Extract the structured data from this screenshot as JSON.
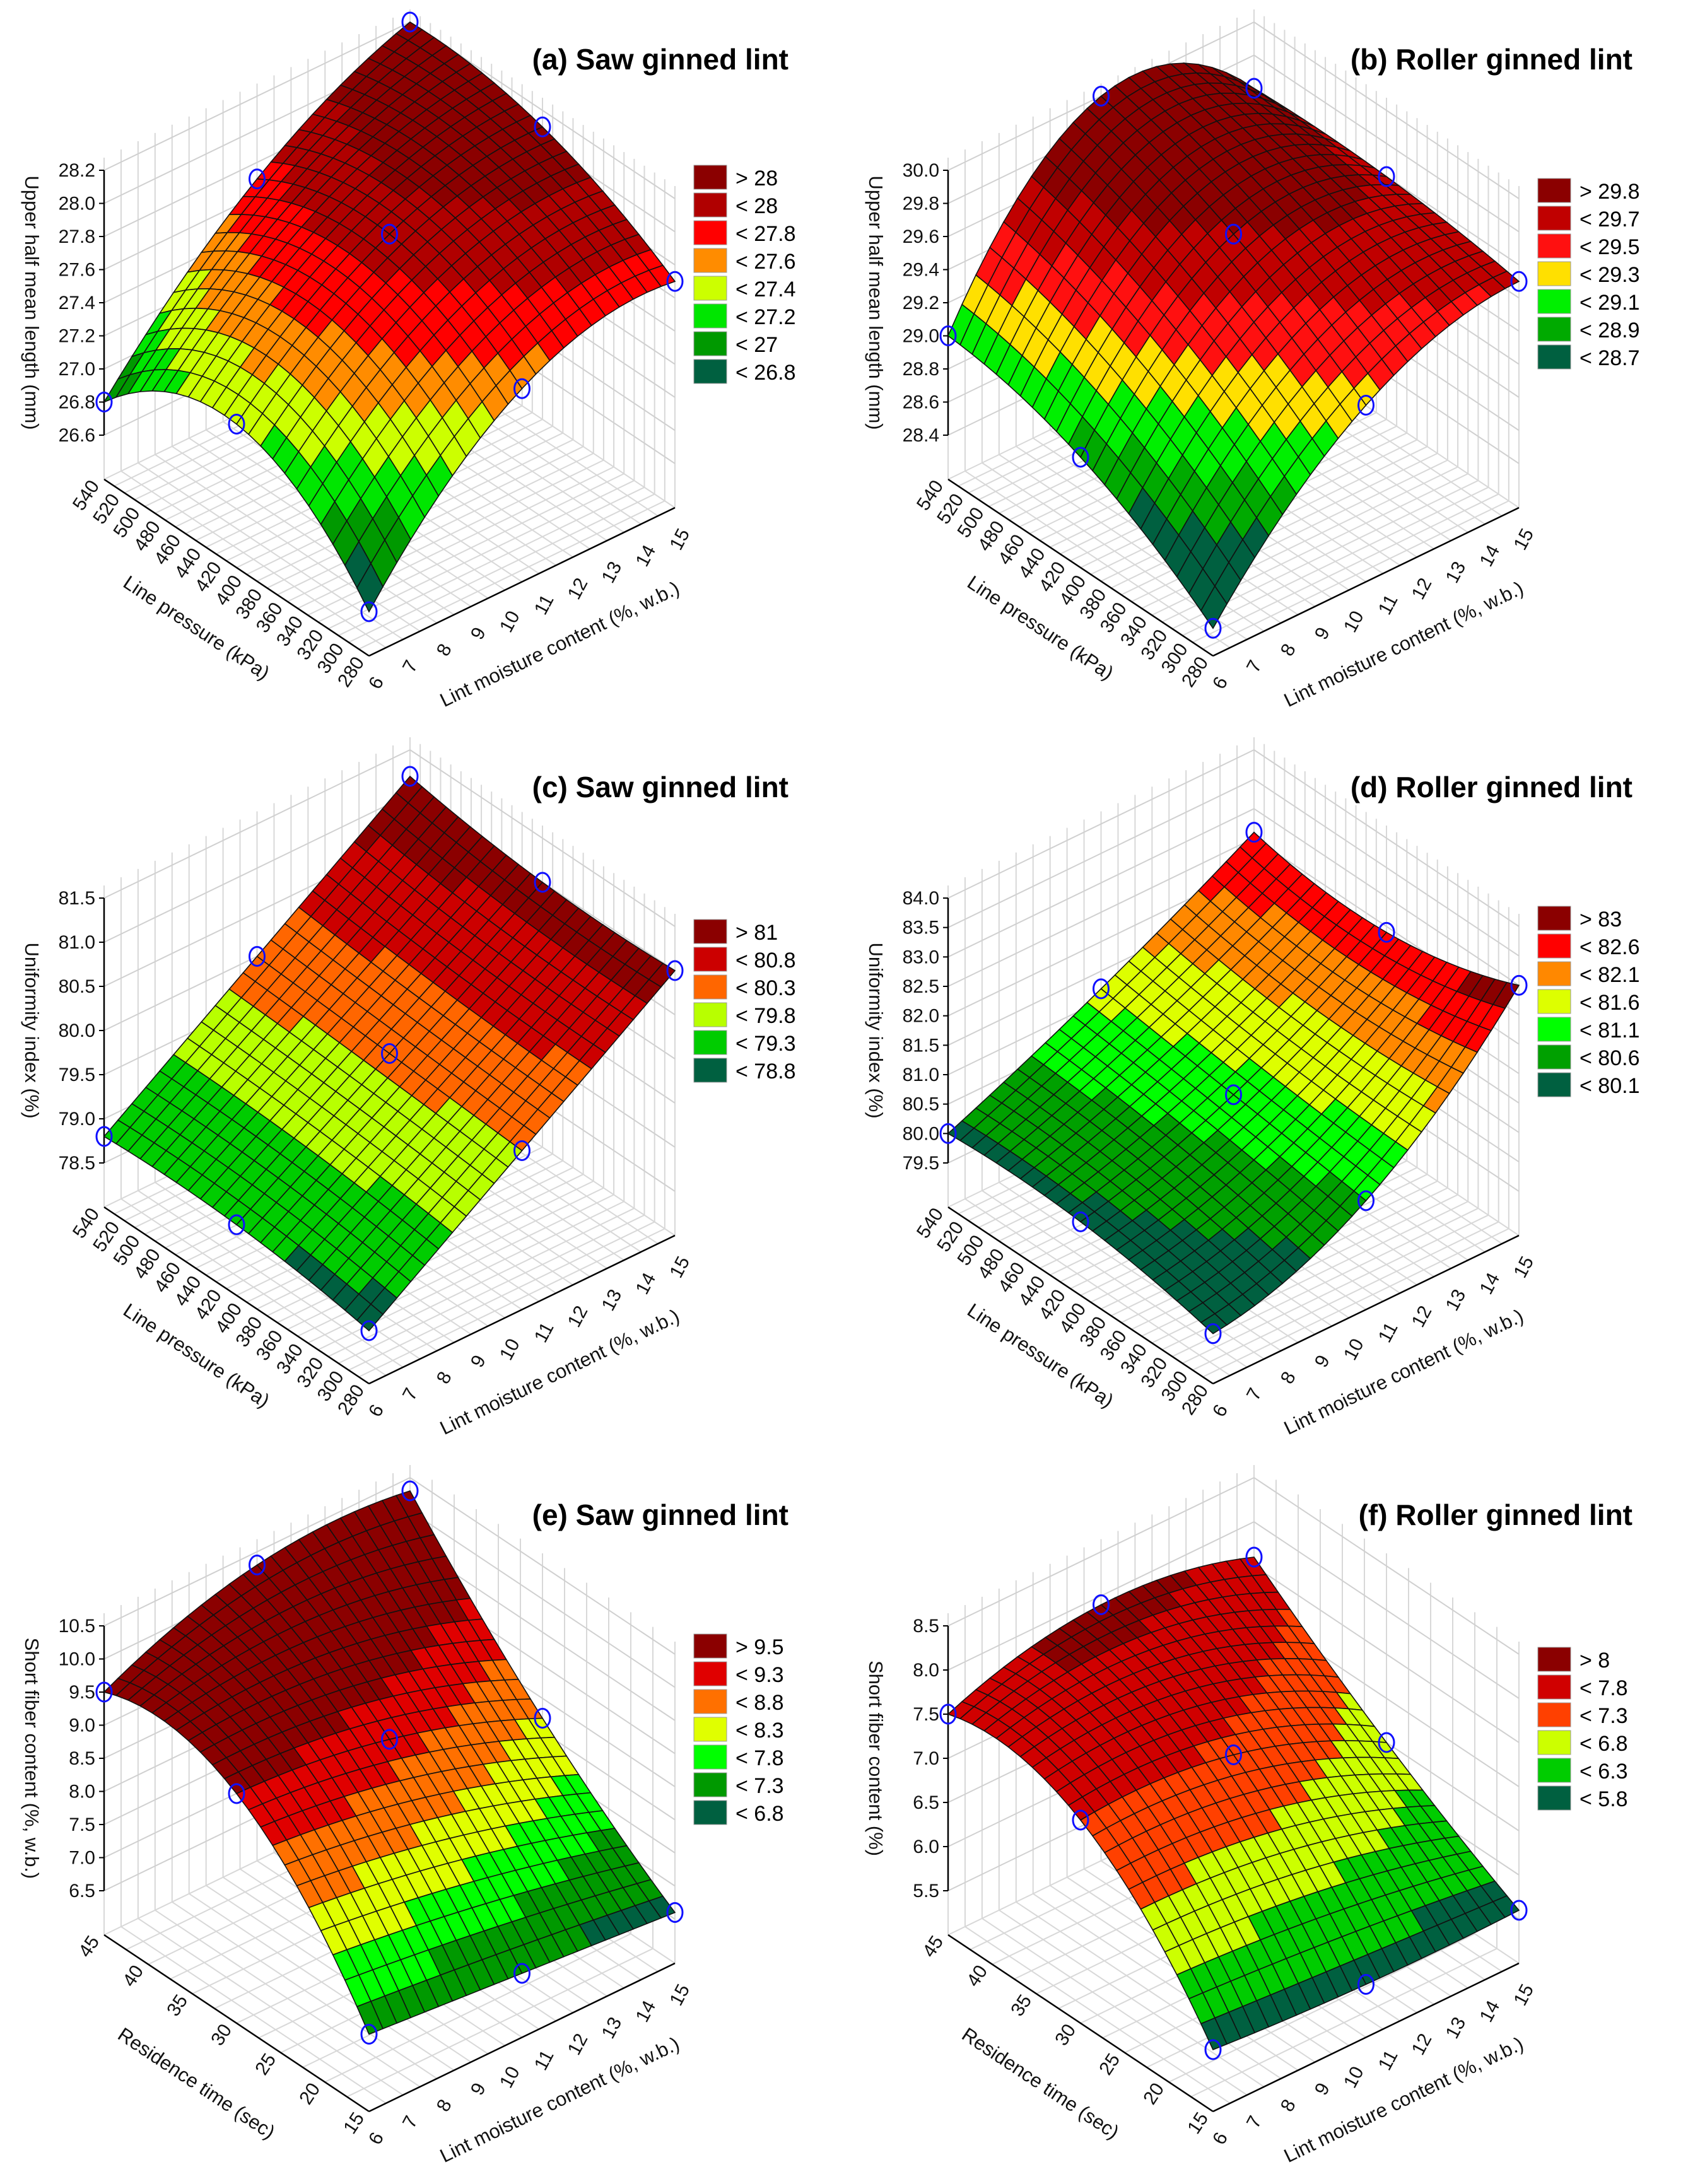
{
  "chart_data": [
    {
      "type": "surface3d",
      "title": "(a) Saw ginned lint",
      "xlabel": "Lint moisture content (%, w.b.)",
      "ylabel": "Line pressure (kPa)",
      "zlabel": "Upper half mean length (mm)",
      "x_range": [
        6,
        15
      ],
      "x_ticks": [
        6,
        7,
        8,
        9,
        10,
        11,
        12,
        13,
        14,
        15
      ],
      "y_range": [
        280,
        540
      ],
      "y_ticks": [
        280,
        300,
        320,
        340,
        360,
        380,
        400,
        420,
        440,
        460,
        480,
        500,
        520,
        540
      ],
      "z_range": [
        26.6,
        28.2
      ],
      "z_ticks": [
        "26.6",
        "26.8",
        "27.0",
        "27.2",
        "27.4",
        "27.6",
        "27.8",
        "28.0",
        "28.2"
      ],
      "surface_grid_x": [
        6,
        10.5,
        15
      ],
      "surface_grid_y": [
        280,
        410,
        540
      ],
      "surface_z": [
        [
          26.6,
          27.5,
          27.7
        ],
        [
          27.2,
          27.9,
          28.1
        ],
        [
          26.8,
          27.7,
          28.2
        ]
      ],
      "legend": [
        {
          "label": "> 28",
          "value": 28,
          "color": "#8B0000"
        },
        {
          "label": "< 28",
          "value": 28,
          "color": "#B00000"
        },
        {
          "label": "< 27.8",
          "value": 27.8,
          "color": "#FF0000"
        },
        {
          "label": "< 27.6",
          "value": 27.6,
          "color": "#FF8C00"
        },
        {
          "label": "< 27.4",
          "value": 27.4,
          "color": "#CCFF00"
        },
        {
          "label": "< 27.2",
          "value": 27.2,
          "color": "#00E600"
        },
        {
          "label": "< 27",
          "value": 27,
          "color": "#009900"
        },
        {
          "label": "< 26.8",
          "value": 26.8,
          "color": "#006040"
        }
      ]
    },
    {
      "type": "surface3d",
      "title": "(b) Roller ginned lint",
      "xlabel": "Lint moisture content (%, w.b.)",
      "ylabel": "Line pressure (kPa)",
      "zlabel": "Upper half mean length (mm)",
      "x_range": [
        6,
        15
      ],
      "x_ticks": [
        6,
        7,
        8,
        9,
        10,
        11,
        12,
        13,
        14,
        15
      ],
      "y_range": [
        280,
        540
      ],
      "y_ticks": [
        280,
        300,
        320,
        340,
        360,
        380,
        400,
        420,
        440,
        460,
        480,
        500,
        520,
        540
      ],
      "z_range": [
        28.4,
        30.0
      ],
      "z_ticks": [
        "28.4",
        "28.6",
        "28.8",
        "29.0",
        "29.2",
        "29.4",
        "29.6",
        "29.8",
        "30.0"
      ],
      "surface_grid_x": [
        6,
        10.5,
        15
      ],
      "surface_grid_y": [
        280,
        410,
        540
      ],
      "surface_z": [
        [
          28.3,
          29.2,
          29.5
        ],
        [
          28.8,
          29.7,
          29.6
        ],
        [
          29.0,
          30.0,
          29.6
        ]
      ],
      "legend": [
        {
          "label": "> 29.8",
          "value": 29.8,
          "color": "#8B0000"
        },
        {
          "label": "< 29.7",
          "value": 29.7,
          "color": "#C00000"
        },
        {
          "label": "< 29.5",
          "value": 29.5,
          "color": "#FF1010"
        },
        {
          "label": "< 29.3",
          "value": 29.3,
          "color": "#FFE000"
        },
        {
          "label": "< 29.1",
          "value": 29.1,
          "color": "#00F000"
        },
        {
          "label": "< 28.9",
          "value": 28.9,
          "color": "#00AA00"
        },
        {
          "label": "< 28.7",
          "value": 28.7,
          "color": "#006040"
        }
      ]
    },
    {
      "type": "surface3d",
      "title": "(c) Saw ginned lint",
      "xlabel": "Lint moisture content (%, w.b.)",
      "ylabel": "Line pressure (kPa)",
      "zlabel": "Uniformity index (%)",
      "x_range": [
        6,
        15
      ],
      "x_ticks": [
        6,
        7,
        8,
        9,
        10,
        11,
        12,
        13,
        14,
        15
      ],
      "y_range": [
        280,
        540
      ],
      "y_ticks": [
        280,
        300,
        320,
        340,
        360,
        380,
        400,
        420,
        440,
        460,
        480,
        500,
        520,
        540
      ],
      "z_range": [
        78.5,
        81.5
      ],
      "z_ticks": [
        "78.5",
        "79.0",
        "79.5",
        "80.0",
        "80.5",
        "81.0",
        "81.5"
      ],
      "surface_grid_x": [
        6,
        10.5,
        15
      ],
      "surface_grid_y": [
        280,
        410,
        540
      ],
      "surface_z": [
        [
          78.6,
          79.8,
          81.0
        ],
        [
          78.8,
          79.9,
          81.0
        ],
        [
          78.8,
          80.0,
          81.2
        ]
      ],
      "legend": [
        {
          "label": "> 81",
          "value": 81,
          "color": "#8B0000"
        },
        {
          "label": "< 80.8",
          "value": 80.8,
          "color": "#CC0000"
        },
        {
          "label": "< 80.3",
          "value": 80.3,
          "color": "#FF6600"
        },
        {
          "label": "< 79.8",
          "value": 79.8,
          "color": "#B8FF00"
        },
        {
          "label": "< 79.3",
          "value": 79.3,
          "color": "#00CC00"
        },
        {
          "label": "< 78.8",
          "value": 78.8,
          "color": "#006040"
        }
      ]
    },
    {
      "type": "surface3d",
      "title": "(d) Roller ginned lint",
      "xlabel": "Lint moisture content (%, w.b.)",
      "ylabel": "Line pressure (kPa)",
      "zlabel": "Uniformity index (%)",
      "x_range": [
        6,
        15
      ],
      "x_ticks": [
        6,
        7,
        8,
        9,
        10,
        11,
        12,
        13,
        14,
        15
      ],
      "y_range": [
        280,
        540
      ],
      "y_ticks": [
        280,
        300,
        320,
        340,
        360,
        380,
        400,
        420,
        440,
        460,
        480,
        500,
        520,
        540
      ],
      "z_range": [
        79.5,
        84.0
      ],
      "z_ticks": [
        "79.5",
        "80.0",
        "80.5",
        "81.0",
        "81.5",
        "82.0",
        "82.5",
        "83.0",
        "83.5",
        "84.0"
      ],
      "surface_grid_x": [
        6,
        10.5,
        15
      ],
      "surface_grid_y": [
        280,
        410,
        540
      ],
      "surface_z": [
        [
          79.6,
          80.6,
          83.0
        ],
        [
          80.0,
          80.9,
          82.4
        ],
        [
          80.0,
          81.2,
          82.6
        ]
      ],
      "legend": [
        {
          "label": "> 83",
          "value": 83,
          "color": "#8B0000"
        },
        {
          "label": "< 82.6",
          "value": 82.6,
          "color": "#FF0000"
        },
        {
          "label": "< 82.1",
          "value": 82.1,
          "color": "#FF8800"
        },
        {
          "label": "< 81.6",
          "value": 81.6,
          "color": "#DDFF00"
        },
        {
          "label": "< 81.1",
          "value": 81.1,
          "color": "#00FF00"
        },
        {
          "label": "< 80.6",
          "value": 80.6,
          "color": "#00A000"
        },
        {
          "label": "< 80.1",
          "value": 80.1,
          "color": "#006040"
        }
      ]
    },
    {
      "type": "surface3d",
      "title": "(e) Saw ginned lint",
      "xlabel": "Lint moisture content (%, w.b.)",
      "ylabel": "Residence time (sec)",
      "zlabel": "Short fiber content (%, w.b.)",
      "x_range": [
        6,
        15
      ],
      "x_ticks": [
        6,
        7,
        8,
        9,
        10,
        11,
        12,
        13,
        14,
        15
      ],
      "y_range": [
        15,
        45
      ],
      "y_ticks": [
        15,
        20,
        25,
        30,
        35,
        40,
        45
      ],
      "z_range": [
        6.5,
        10.5
      ],
      "z_ticks": [
        "6.5",
        "7.0",
        "7.5",
        "8.0",
        "8.5",
        "9.0",
        "9.5",
        "10.0",
        "10.5"
      ],
      "surface_grid_x": [
        6,
        10.5,
        15
      ],
      "surface_grid_y": [
        15,
        30,
        45
      ],
      "surface_z": [
        [
          7.0,
          6.8,
          6.6
        ],
        [
          9.3,
          9.0,
          8.2
        ],
        [
          9.5,
          10.3,
          10.3
        ]
      ],
      "legend": [
        {
          "label": "> 9.5",
          "value": 9.5,
          "color": "#8B0000"
        },
        {
          "label": "< 9.3",
          "value": 9.3,
          "color": "#E00000"
        },
        {
          "label": "< 8.8",
          "value": 8.8,
          "color": "#FF7000"
        },
        {
          "label": "< 8.3",
          "value": 8.3,
          "color": "#E0FF00"
        },
        {
          "label": "< 7.8",
          "value": 7.8,
          "color": "#00FF00"
        },
        {
          "label": "< 7.3",
          "value": 7.3,
          "color": "#009900"
        },
        {
          "label": "< 6.8",
          "value": 6.8,
          "color": "#006040"
        }
      ]
    },
    {
      "type": "surface3d",
      "title": "(f) Roller ginned lint",
      "xlabel": "Lint moisture content (%, w.b.)",
      "ylabel": "Residence time (sec)",
      "zlabel": "Short fiber content (%)",
      "x_range": [
        6,
        15
      ],
      "x_ticks": [
        6,
        7,
        8,
        9,
        10,
        11,
        12,
        13,
        14,
        15
      ],
      "y_range": [
        15,
        45
      ],
      "y_ticks": [
        15,
        20,
        25,
        30,
        35,
        40,
        45
      ],
      "z_range": [
        5.5,
        8.5
      ],
      "z_ticks": [
        "5.5",
        "6.0",
        "6.5",
        "7.0",
        "7.5",
        "8.0",
        "8.5"
      ],
      "surface_grid_x": [
        6,
        10.5,
        15
      ],
      "surface_grid_y": [
        15,
        30,
        45
      ],
      "surface_z": [
        [
          5.7,
          5.6,
          5.6
        ],
        [
          7.3,
          7.2,
          6.5
        ],
        [
          7.5,
          7.9,
          7.6
        ]
      ],
      "legend": [
        {
          "label": "> 8",
          "value": 8,
          "color": "#8B0000"
        },
        {
          "label": "< 7.8",
          "value": 7.8,
          "color": "#D00000"
        },
        {
          "label": "< 7.3",
          "value": 7.3,
          "color": "#FF4000"
        },
        {
          "label": "< 6.8",
          "value": 6.8,
          "color": "#CCFF00"
        },
        {
          "label": "< 6.3",
          "value": 6.3,
          "color": "#00CC00"
        },
        {
          "label": "< 5.8",
          "value": 5.8,
          "color": "#006040"
        }
      ]
    }
  ]
}
